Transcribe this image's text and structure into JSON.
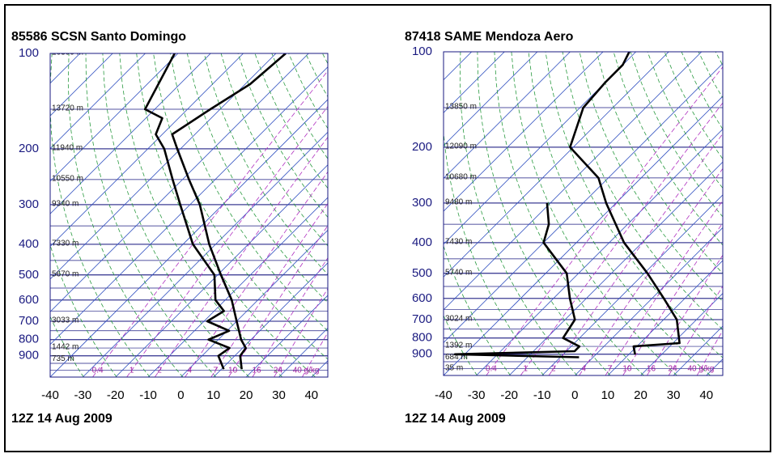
{
  "chart_data": [
    {
      "type": "skewt",
      "title": "85586 SCSN Santo Domingo",
      "subtitle": "12Z 14 Aug 2009",
      "xlim": [
        -40,
        45
      ],
      "xticks": [
        -40,
        -30,
        -20,
        -10,
        0,
        10,
        20,
        30,
        40
      ],
      "ylim": [
        1050,
        100
      ],
      "yticks": [
        100,
        200,
        300,
        400,
        500,
        600,
        700,
        800,
        900
      ],
      "log_y": true,
      "height_labels": [
        "16300 m",
        "13720 m",
        "11940 m",
        "10550 m",
        "9340 m",
        "7330 m",
        "5670 m",
        "3033 m",
        "1442 m",
        "735 m",
        null
      ],
      "mixing_ratios": [
        0.4,
        1,
        2,
        4,
        7,
        10,
        16,
        24,
        {
          "value": 40,
          "label": "40 g/kg"
        }
      ],
      "series": [
        {
          "color": "#000000",
          "y": [
            991,
            900,
            850,
            800,
            700,
            600,
            500,
            400,
            300,
            250,
            200,
            180,
            150,
            125,
            100
          ],
          "x": [
            16.2,
            11.7,
            11,
            7,
            0,
            -8,
            -19,
            -32,
            -47,
            -58,
            -71,
            -77,
            -73,
            -68.5,
            -67
          ]
        },
        {
          "color": "#000000",
          "y": [
            991,
            900,
            850,
            800,
            750,
            700,
            650,
            600,
            500,
            400,
            300,
            250,
            200,
            180,
            160,
            150,
            100
          ],
          "x": [
            10.7,
            5,
            6,
            -3,
            0.6,
            -9,
            -7,
            -13,
            -21,
            -37,
            -53,
            -63,
            -75,
            -82,
            -85,
            -93,
            -101
          ]
        }
      ]
    },
    {
      "type": "skewt",
      "title": "87418 SAME Mendoza Aero",
      "subtitle": "12Z 14 Aug 2009",
      "xlim": [
        -40,
        45
      ],
      "xticks": [
        -40,
        -30,
        -20,
        -10,
        0,
        10,
        20,
        30,
        40
      ],
      "ylim": [
        1050,
        100
      ],
      "yticks": [
        100,
        200,
        300,
        400,
        500,
        600,
        700,
        800,
        900
      ],
      "log_y": true,
      "height_labels": [
        null,
        "13850 m",
        "12090 m",
        "10680 m",
        "9480 m",
        "7430 m",
        "5740 m",
        "3024 m",
        "1392 m",
        "684 m",
        "35 m"
      ],
      "mixing_ratios": [
        0.4,
        1,
        2,
        4,
        7,
        10,
        16,
        24,
        {
          "value": 40,
          "label": "40 g/kg"
        }
      ],
      "series": [
        {
          "color": "#000000",
          "y": [
            903,
            850,
            830,
            700,
            600,
            500,
            400,
            300,
            250,
            200,
            150,
            125,
            110,
            100
          ],
          "x": [
            12,
            9,
            22,
            14,
            3.6,
            -9,
            -25.5,
            -43,
            -53,
            -71,
            -79,
            -80,
            -80,
            -82
          ]
        },
        {
          "color": "#000000",
          "y": [
            920,
            900,
            880,
            850,
            800,
            700,
            600,
            500,
            400,
            350,
            300
          ],
          "x": [
            -4.3,
            -43,
            -7.5,
            -7.5,
            -15,
            -17,
            -25,
            -33.6,
            -50,
            -54,
            -61
          ]
        }
      ]
    }
  ]
}
